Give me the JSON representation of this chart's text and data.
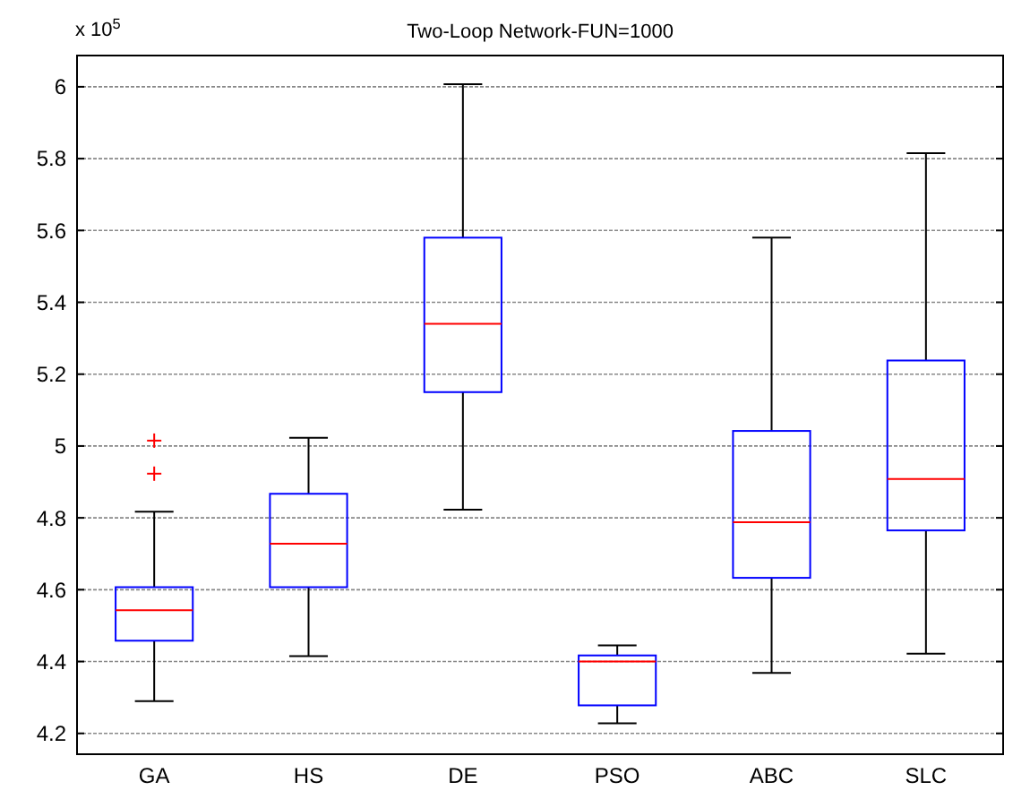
{
  "chart_data": {
    "type": "box",
    "title": "Two-Loop Network-FUN=1000",
    "annotations": [
      "x 10$^{5}$"
    ],
    "categories": [
      "GA",
      "HS",
      "DE",
      "PSO",
      "ABC",
      "SLC"
    ],
    "boxes": [
      {
        "low": 4.29,
        "q1": 4.458,
        "median": 4.543,
        "q3": 4.607,
        "high": 4.817,
        "outliers": [
          5.015,
          4.923
        ]
      },
      {
        "low": 4.415,
        "q1": 4.607,
        "median": 4.728,
        "q3": 4.867,
        "high": 5.023
      },
      {
        "low": 4.823,
        "q1": 5.15,
        "median": 5.34,
        "q3": 5.58,
        "high": 6.007
      },
      {
        "low": 4.228,
        "q1": 4.278,
        "median": 4.4,
        "q3": 4.417,
        "high": 4.445
      },
      {
        "low": 4.368,
        "q1": 4.633,
        "median": 4.788,
        "q3": 5.042,
        "high": 5.58
      },
      {
        "low": 4.422,
        "q1": 4.765,
        "median": 4.908,
        "q3": 5.238,
        "high": 5.815
      }
    ],
    "color": "#0000ff",
    "marker": "cross",
    "ylim": [
      4.142,
      6.087
    ],
    "yticks": [
      4.2,
      4.4,
      4.6,
      4.8,
      5,
      5.2,
      5.4,
      5.6,
      5.8,
      6
    ],
    "grid": "y"
  }
}
